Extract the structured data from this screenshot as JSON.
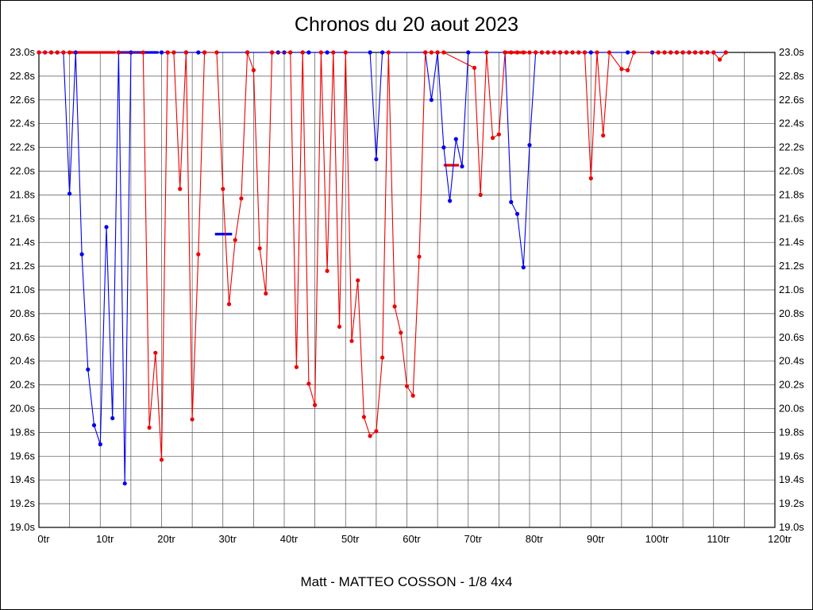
{
  "header": {
    "title": "Chronos du 20 aout 2023"
  },
  "footer": {
    "caption": "Matt - MATTEO COSSON - 1/8 4x4"
  },
  "chart_data": {
    "type": "line",
    "title": "Chronos du 20 aout 2023",
    "subtitle": "Matt - MATTEO COSSON - 1/8 4x4",
    "xlabel": "",
    "ylabel": "",
    "x_axis": {
      "min": 0,
      "max": 120,
      "major_step": 10,
      "minor_step": 5,
      "unit": "tr",
      "tick_labels": [
        "0tr",
        "10tr",
        "20tr",
        "30tr",
        "40tr",
        "50tr",
        "60tr",
        "70tr",
        "80tr",
        "90tr",
        "100tr",
        "110tr",
        "120tr"
      ]
    },
    "y_axis": {
      "min": 19.0,
      "max": 23.0,
      "step": 0.2,
      "unit": "s",
      "tick_labels": [
        "19.0s",
        "19.2s",
        "19.4s",
        "19.6s",
        "19.8s",
        "20.0s",
        "20.2s",
        "20.4s",
        "20.6s",
        "20.8s",
        "21.0s",
        "21.2s",
        "21.4s",
        "21.6s",
        "21.8s",
        "22.0s",
        "22.2s",
        "22.4s",
        "22.6s",
        "22.8s",
        "23.0s"
      ]
    },
    "grid": true,
    "grid_color": "#555555",
    "axis_color": "#000000",
    "clip_note": "lap times slower than 23.0s are clipped to the 23.0s top line",
    "series": [
      {
        "name": "serie-bleue",
        "color": "#0000ee",
        "points": [
          [
            0,
            23
          ],
          [
            1,
            23
          ],
          [
            2,
            23
          ],
          [
            3,
            23
          ],
          [
            4,
            23
          ],
          [
            5,
            21.81
          ],
          [
            6,
            23
          ],
          [
            7,
            21.3
          ],
          [
            8,
            20.33
          ],
          [
            9,
            19.86
          ],
          [
            10,
            19.7
          ],
          [
            11,
            21.53
          ],
          [
            12,
            19.92
          ],
          [
            13,
            23
          ],
          [
            14,
            19.37
          ],
          [
            15,
            23
          ],
          [
            20,
            23
          ],
          [
            21,
            23
          ],
          [
            22,
            23
          ],
          [
            24,
            23
          ],
          [
            26,
            23
          ],
          [
            27,
            23
          ],
          [
            34,
            23
          ],
          [
            38,
            23
          ],
          [
            39,
            23
          ],
          [
            40,
            23
          ],
          [
            41,
            23
          ],
          [
            43,
            23
          ],
          [
            44,
            23
          ],
          [
            47,
            23
          ],
          [
            54,
            23
          ],
          [
            55,
            22.1
          ],
          [
            56,
            23
          ],
          [
            63,
            23
          ],
          [
            64,
            22.6
          ],
          [
            65,
            23
          ],
          [
            66,
            22.2
          ],
          [
            67,
            21.75
          ],
          [
            68,
            22.27
          ],
          [
            69,
            22.04
          ],
          [
            70,
            23
          ],
          [
            76,
            23
          ],
          [
            77,
            21.74
          ],
          [
            78,
            21.64
          ],
          [
            79,
            21.19
          ],
          [
            80,
            22.22
          ],
          [
            81,
            23
          ],
          [
            82,
            23
          ],
          [
            83,
            23
          ],
          [
            84,
            23
          ],
          [
            85,
            23
          ],
          [
            86,
            23
          ],
          [
            87,
            23
          ],
          [
            88,
            23
          ],
          [
            89,
            23
          ],
          [
            90,
            23
          ],
          [
            96,
            23
          ],
          [
            97,
            23
          ],
          [
            100,
            23
          ],
          [
            101,
            23
          ],
          [
            102,
            23
          ],
          [
            103,
            23
          ],
          [
            104,
            23
          ],
          [
            105,
            23
          ],
          [
            106,
            23
          ],
          [
            107,
            23
          ],
          [
            108,
            23
          ],
          [
            109,
            23
          ],
          [
            110,
            23
          ],
          [
            112,
            23
          ]
        ]
      },
      {
        "name": "serie-rouge",
        "color": "#ee0000",
        "points": [
          [
            0,
            23
          ],
          [
            1,
            23
          ],
          [
            2,
            23
          ],
          [
            3,
            23
          ],
          [
            4,
            23
          ],
          [
            5,
            23
          ],
          [
            13,
            23
          ],
          [
            17,
            23
          ],
          [
            18,
            19.84
          ],
          [
            19,
            20.47
          ],
          [
            20,
            19.57
          ],
          [
            21,
            23
          ],
          [
            22,
            23
          ],
          [
            23,
            21.85
          ],
          [
            24,
            23
          ],
          [
            25,
            19.91
          ],
          [
            26,
            21.3
          ],
          [
            27,
            23
          ],
          [
            29,
            23
          ],
          [
            30,
            21.85
          ],
          [
            31,
            20.88
          ],
          [
            32,
            21.42
          ],
          [
            33,
            21.77
          ],
          [
            34,
            23
          ],
          [
            35,
            22.85
          ],
          [
            36,
            21.35
          ],
          [
            37,
            20.97
          ],
          [
            38,
            23
          ],
          [
            41,
            23
          ],
          [
            42,
            20.35
          ],
          [
            43,
            23
          ],
          [
            44,
            20.21
          ],
          [
            45,
            20.03
          ],
          [
            46,
            23
          ],
          [
            47,
            21.16
          ],
          [
            48,
            23
          ],
          [
            49,
            20.69
          ],
          [
            50,
            23
          ],
          [
            51,
            20.57
          ],
          [
            52,
            21.08
          ],
          [
            53,
            19.93
          ],
          [
            54,
            19.77
          ],
          [
            55,
            19.81
          ],
          [
            56,
            20.43
          ],
          [
            57,
            23
          ],
          [
            58,
            20.86
          ],
          [
            59,
            20.64
          ],
          [
            60,
            20.19
          ],
          [
            61,
            20.11
          ],
          [
            62,
            21.28
          ],
          [
            63,
            23
          ],
          [
            64,
            23
          ],
          [
            65,
            23
          ],
          [
            66,
            23
          ],
          [
            71,
            22.87
          ],
          [
            72,
            21.8
          ],
          [
            73,
            23
          ],
          [
            74,
            22.28
          ],
          [
            75,
            22.31
          ],
          [
            76,
            23
          ],
          [
            77,
            23
          ],
          [
            78,
            23
          ],
          [
            79,
            23
          ],
          [
            80,
            23
          ],
          [
            81,
            23
          ],
          [
            82,
            23
          ],
          [
            83,
            23
          ],
          [
            84,
            23
          ],
          [
            85,
            23
          ],
          [
            86,
            23
          ],
          [
            87,
            23
          ],
          [
            88,
            23
          ],
          [
            89,
            23
          ],
          [
            90,
            21.94
          ],
          [
            91,
            23
          ],
          [
            92,
            22.3
          ],
          [
            93,
            23
          ],
          [
            95,
            22.86
          ],
          [
            96,
            22.85
          ],
          [
            97,
            23
          ],
          [
            101,
            23
          ],
          [
            102,
            23
          ],
          [
            103,
            23
          ],
          [
            104,
            23
          ],
          [
            105,
            23
          ],
          [
            106,
            23
          ],
          [
            107,
            23
          ],
          [
            108,
            23
          ],
          [
            109,
            23
          ],
          [
            110,
            23
          ],
          [
            111,
            22.94
          ],
          [
            112,
            23
          ]
        ]
      }
    ],
    "avg_markers": [
      {
        "color": "#ee0000",
        "time": 23.0,
        "lap_from": 5,
        "lap_to": 12.5
      },
      {
        "color": "#0000ee",
        "time": 23.0,
        "lap_from": 12.8,
        "lap_to": 19.5
      },
      {
        "color": "#0000ee",
        "time": 21.47,
        "lap_from": 28.7,
        "lap_to": 31.5
      },
      {
        "color": "#ee0000",
        "time": 22.05,
        "lap_from": 66.0,
        "lap_to": 68.5
      },
      {
        "color": "#ee0000",
        "time": 23.0,
        "lap_from": 76.0,
        "lap_to": 79.5
      }
    ]
  }
}
